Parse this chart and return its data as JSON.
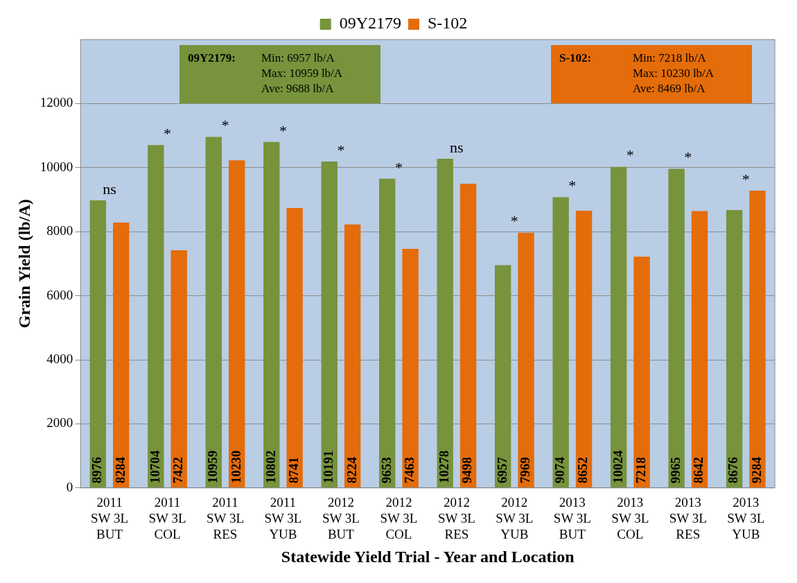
{
  "chart_data": {
    "type": "bar",
    "xlabel": "Statewide Yield Trial - Year and Location",
    "ylabel": "Grain Yield (lb/A)",
    "categories": [
      "2011\nSW 3L\nBUT",
      "2011\nSW 3L\nCOL",
      "2011\nSW 3L\nRES",
      "2011\nSW 3L\nYUB",
      "2012\nSW 3L\nBUT",
      "2012\nSW 3L\nCOL",
      "2012\nSW 3L\nRES",
      "2012\nSW 3L\nYUB",
      "2013\nSW 3L\nBUT",
      "2013\nSW 3L\nCOL",
      "2013\nSW 3L\nRES",
      "2013\nSW 3L\nYUB"
    ],
    "series": [
      {
        "name": "09Y2179",
        "color": "#77933c",
        "values": [
          8976,
          10704,
          10959,
          10802,
          10191,
          9653,
          10278,
          6957,
          9074,
          10024,
          9965,
          8676
        ]
      },
      {
        "name": "S-102",
        "color": "#e46c0a",
        "values": [
          8284,
          7422,
          10230,
          8741,
          8224,
          7463,
          9498,
          7969,
          8652,
          7218,
          8642,
          9284
        ]
      }
    ],
    "ylim": [
      0,
      14000
    ],
    "yticks": [
      0,
      2000,
      4000,
      6000,
      8000,
      10000,
      12000
    ],
    "grid": "y",
    "legend": "top",
    "data_labels": true,
    "annotations": [
      "ns",
      "*",
      "*",
      "*",
      "*",
      "*",
      "ns",
      "*",
      "*",
      "*",
      "*",
      "*",
      "09Y2179:\tMin: 6957 lb/A\nMax: 10959 lb/A\nAve: 9688 lb/A",
      "S-102:\tMin: 7218 lb/A\nMax: 10230 lb/A\nAve: 8469 lb/A"
    ]
  }
}
